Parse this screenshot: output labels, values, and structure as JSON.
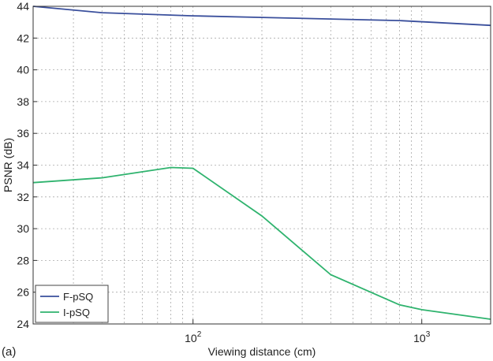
{
  "panel_label": "(a)",
  "chart_data": {
    "type": "line",
    "title": "",
    "xlabel": "Viewing distance (cm)",
    "ylabel": "PSNR (dB)",
    "xscale": "log",
    "xlim": [
      20,
      2000
    ],
    "ylim": [
      24,
      44
    ],
    "grid": true,
    "legend_position": "bottom-left",
    "x_ticks": [
      {
        "value": 100,
        "base": "10",
        "exp": "2"
      },
      {
        "value": 1000,
        "base": "10",
        "exp": "3"
      }
    ],
    "y_ticks": [
      "24",
      "26",
      "28",
      "30",
      "32",
      "34",
      "36",
      "38",
      "40",
      "42",
      "44"
    ],
    "series": [
      {
        "name": "F-pSQ",
        "color": "#3a4f9c",
        "x": [
          20,
          40,
          100,
          200,
          400,
          800,
          2000
        ],
        "y": [
          44.0,
          43.6,
          43.4,
          43.3,
          43.2,
          43.1,
          42.8
        ]
      },
      {
        "name": "I-pSQ",
        "color": "#2fb36e",
        "x": [
          20,
          40,
          80,
          100,
          200,
          400,
          800,
          1000,
          2000
        ],
        "y": [
          32.9,
          33.2,
          33.85,
          33.8,
          30.8,
          27.1,
          25.2,
          24.9,
          24.3
        ]
      }
    ]
  }
}
